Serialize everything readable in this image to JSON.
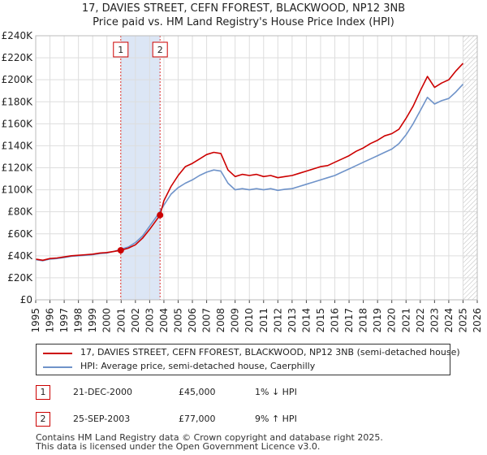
{
  "title": "17, DAVIES STREET, CEFN FFOREST, BLACKWOOD, NP12 3NB",
  "subtitle": "Price paid vs. HM Land Registry's House Price Index (HPI)",
  "colors": {
    "property": "#cc0000",
    "hpi": "#6f93c9",
    "highlight": "#dce6f5",
    "grid": "#dddddd"
  },
  "chart_data": {
    "type": "line",
    "title": "17, DAVIES STREET, CEFN FFOREST, BLACKWOOD, NP12 3NB",
    "subtitle": "Price paid vs. HM Land Registry's House Price Index (HPI)",
    "xlabel": "",
    "ylabel": "",
    "xlim": [
      1995,
      2026
    ],
    "ylim": [
      0,
      240000
    ],
    "grid": true,
    "y_ticks": [
      0,
      20000,
      40000,
      60000,
      80000,
      100000,
      120000,
      140000,
      160000,
      180000,
      200000,
      220000,
      240000
    ],
    "y_tick_labels": [
      "£0",
      "£20K",
      "£40K",
      "£60K",
      "£80K",
      "£100K",
      "£120K",
      "£140K",
      "£160K",
      "£180K",
      "£200K",
      "£220K",
      "£240K"
    ],
    "x_ticks": [
      1995,
      1996,
      1997,
      1998,
      1999,
      2000,
      2001,
      2002,
      2003,
      2004,
      2005,
      2006,
      2007,
      2008,
      2009,
      2010,
      2011,
      2012,
      2013,
      2014,
      2015,
      2016,
      2017,
      2018,
      2019,
      2020,
      2021,
      2022,
      2023,
      2024,
      2025,
      2026
    ],
    "x_tick_labels": [
      "1995",
      "1996",
      "1997",
      "1998",
      "1999",
      "2000",
      "2001",
      "2002",
      "2003",
      "2004",
      "2005",
      "2006",
      "2007",
      "2008",
      "2009",
      "2010",
      "2011",
      "2012",
      "2013",
      "2014",
      "2015",
      "2016",
      "2017",
      "2018",
      "2019",
      "2020",
      "2021",
      "2022",
      "2023",
      "2024",
      "2025",
      "2026"
    ],
    "highlight_range": [
      2000.97,
      2003.73
    ],
    "future_hatch_from": 2025.0,
    "series": [
      {
        "name": "17, DAVIES STREET, CEFN FFOREST, BLACKWOOD, NP12 3NB (semi-detached house)",
        "color": "#cc0000",
        "x": [
          1995.0,
          1995.5,
          1996.0,
          1996.5,
          1997.0,
          1997.5,
          1998.0,
          1998.5,
          1999.0,
          1999.5,
          2000.0,
          2000.5,
          2000.97,
          2001.5,
          2002.0,
          2002.5,
          2003.0,
          2003.73,
          2004.0,
          2004.5,
          2005.0,
          2005.5,
          2006.0,
          2006.5,
          2007.0,
          2007.5,
          2008.0,
          2008.5,
          2009.0,
          2009.5,
          2010.0,
          2010.5,
          2011.0,
          2011.5,
          2012.0,
          2012.5,
          2013.0,
          2013.5,
          2014.0,
          2014.5,
          2015.0,
          2015.5,
          2016.0,
          2016.5,
          2017.0,
          2017.5,
          2018.0,
          2018.5,
          2019.0,
          2019.5,
          2020.0,
          2020.5,
          2021.0,
          2021.5,
          2022.0,
          2022.5,
          2023.0,
          2023.5,
          2024.0,
          2024.5,
          2025.0
        ],
        "y": [
          37000,
          36000,
          37500,
          38000,
          39000,
          40000,
          40500,
          41000,
          41500,
          42500,
          43000,
          44000,
          45000,
          47000,
          50000,
          56000,
          64000,
          77000,
          90000,
          103000,
          113000,
          121000,
          124000,
          128000,
          132000,
          134000,
          133000,
          118000,
          112000,
          114000,
          113000,
          114000,
          112000,
          113000,
          111000,
          112000,
          113000,
          115000,
          117000,
          119000,
          121000,
          122000,
          125000,
          128000,
          131000,
          135000,
          138000,
          142000,
          145000,
          149000,
          151000,
          155000,
          165000,
          176000,
          190000,
          203000,
          193000,
          197000,
          200000,
          208000,
          215000
        ]
      },
      {
        "name": "HPI: Average price, semi-detached house, Caerphilly",
        "color": "#6f93c9",
        "x": [
          1995.0,
          1995.5,
          1996.0,
          1996.5,
          1997.0,
          1997.5,
          1998.0,
          1998.5,
          1999.0,
          1999.5,
          2000.0,
          2000.5,
          2001.0,
          2001.5,
          2002.0,
          2002.5,
          2003.0,
          2003.5,
          2004.0,
          2004.5,
          2005.0,
          2005.5,
          2006.0,
          2006.5,
          2007.0,
          2007.5,
          2008.0,
          2008.5,
          2009.0,
          2009.5,
          2010.0,
          2010.5,
          2011.0,
          2011.5,
          2012.0,
          2012.5,
          2013.0,
          2013.5,
          2014.0,
          2014.5,
          2015.0,
          2015.5,
          2016.0,
          2016.5,
          2017.0,
          2017.5,
          2018.0,
          2018.5,
          2019.0,
          2019.5,
          2020.0,
          2020.5,
          2021.0,
          2021.5,
          2022.0,
          2022.5,
          2023.0,
          2023.5,
          2024.0,
          2024.5,
          2025.0
        ],
        "y": [
          36500,
          35500,
          37000,
          37500,
          38500,
          39500,
          40000,
          40500,
          41000,
          42000,
          42500,
          44000,
          46000,
          48000,
          52000,
          58000,
          67000,
          76000,
          86000,
          96000,
          102000,
          106000,
          109000,
          113000,
          116000,
          118000,
          117000,
          106000,
          100000,
          101000,
          100000,
          101000,
          100000,
          101000,
          99500,
          100500,
          101000,
          103000,
          105000,
          107000,
          109000,
          111000,
          113000,
          116000,
          119000,
          122000,
          125000,
          128000,
          131000,
          134000,
          137000,
          142000,
          150000,
          160000,
          172000,
          184000,
          178000,
          181000,
          183000,
          189000,
          196000
        ]
      }
    ],
    "markers": [
      {
        "label": "1",
        "x": 2000.97,
        "y": 45000
      },
      {
        "label": "2",
        "x": 2003.73,
        "y": 77000
      }
    ]
  },
  "legend": {
    "property_label": "17, DAVIES STREET, CEFN FFOREST, BLACKWOOD, NP12 3NB (semi-detached house)",
    "hpi_label": "HPI: Average price, semi-detached house, Caerphilly"
  },
  "transactions": [
    {
      "num": "1",
      "date": "21-DEC-2000",
      "price": "£45,000",
      "hpi_change": "1% ↓ HPI"
    },
    {
      "num": "2",
      "date": "25-SEP-2003",
      "price": "£77,000",
      "hpi_change": "9% ↑ HPI"
    }
  ],
  "footer": {
    "line1": "Contains HM Land Registry data © Crown copyright and database right 2025.",
    "line2": "This data is licensed under the Open Government Licence v3.0."
  }
}
